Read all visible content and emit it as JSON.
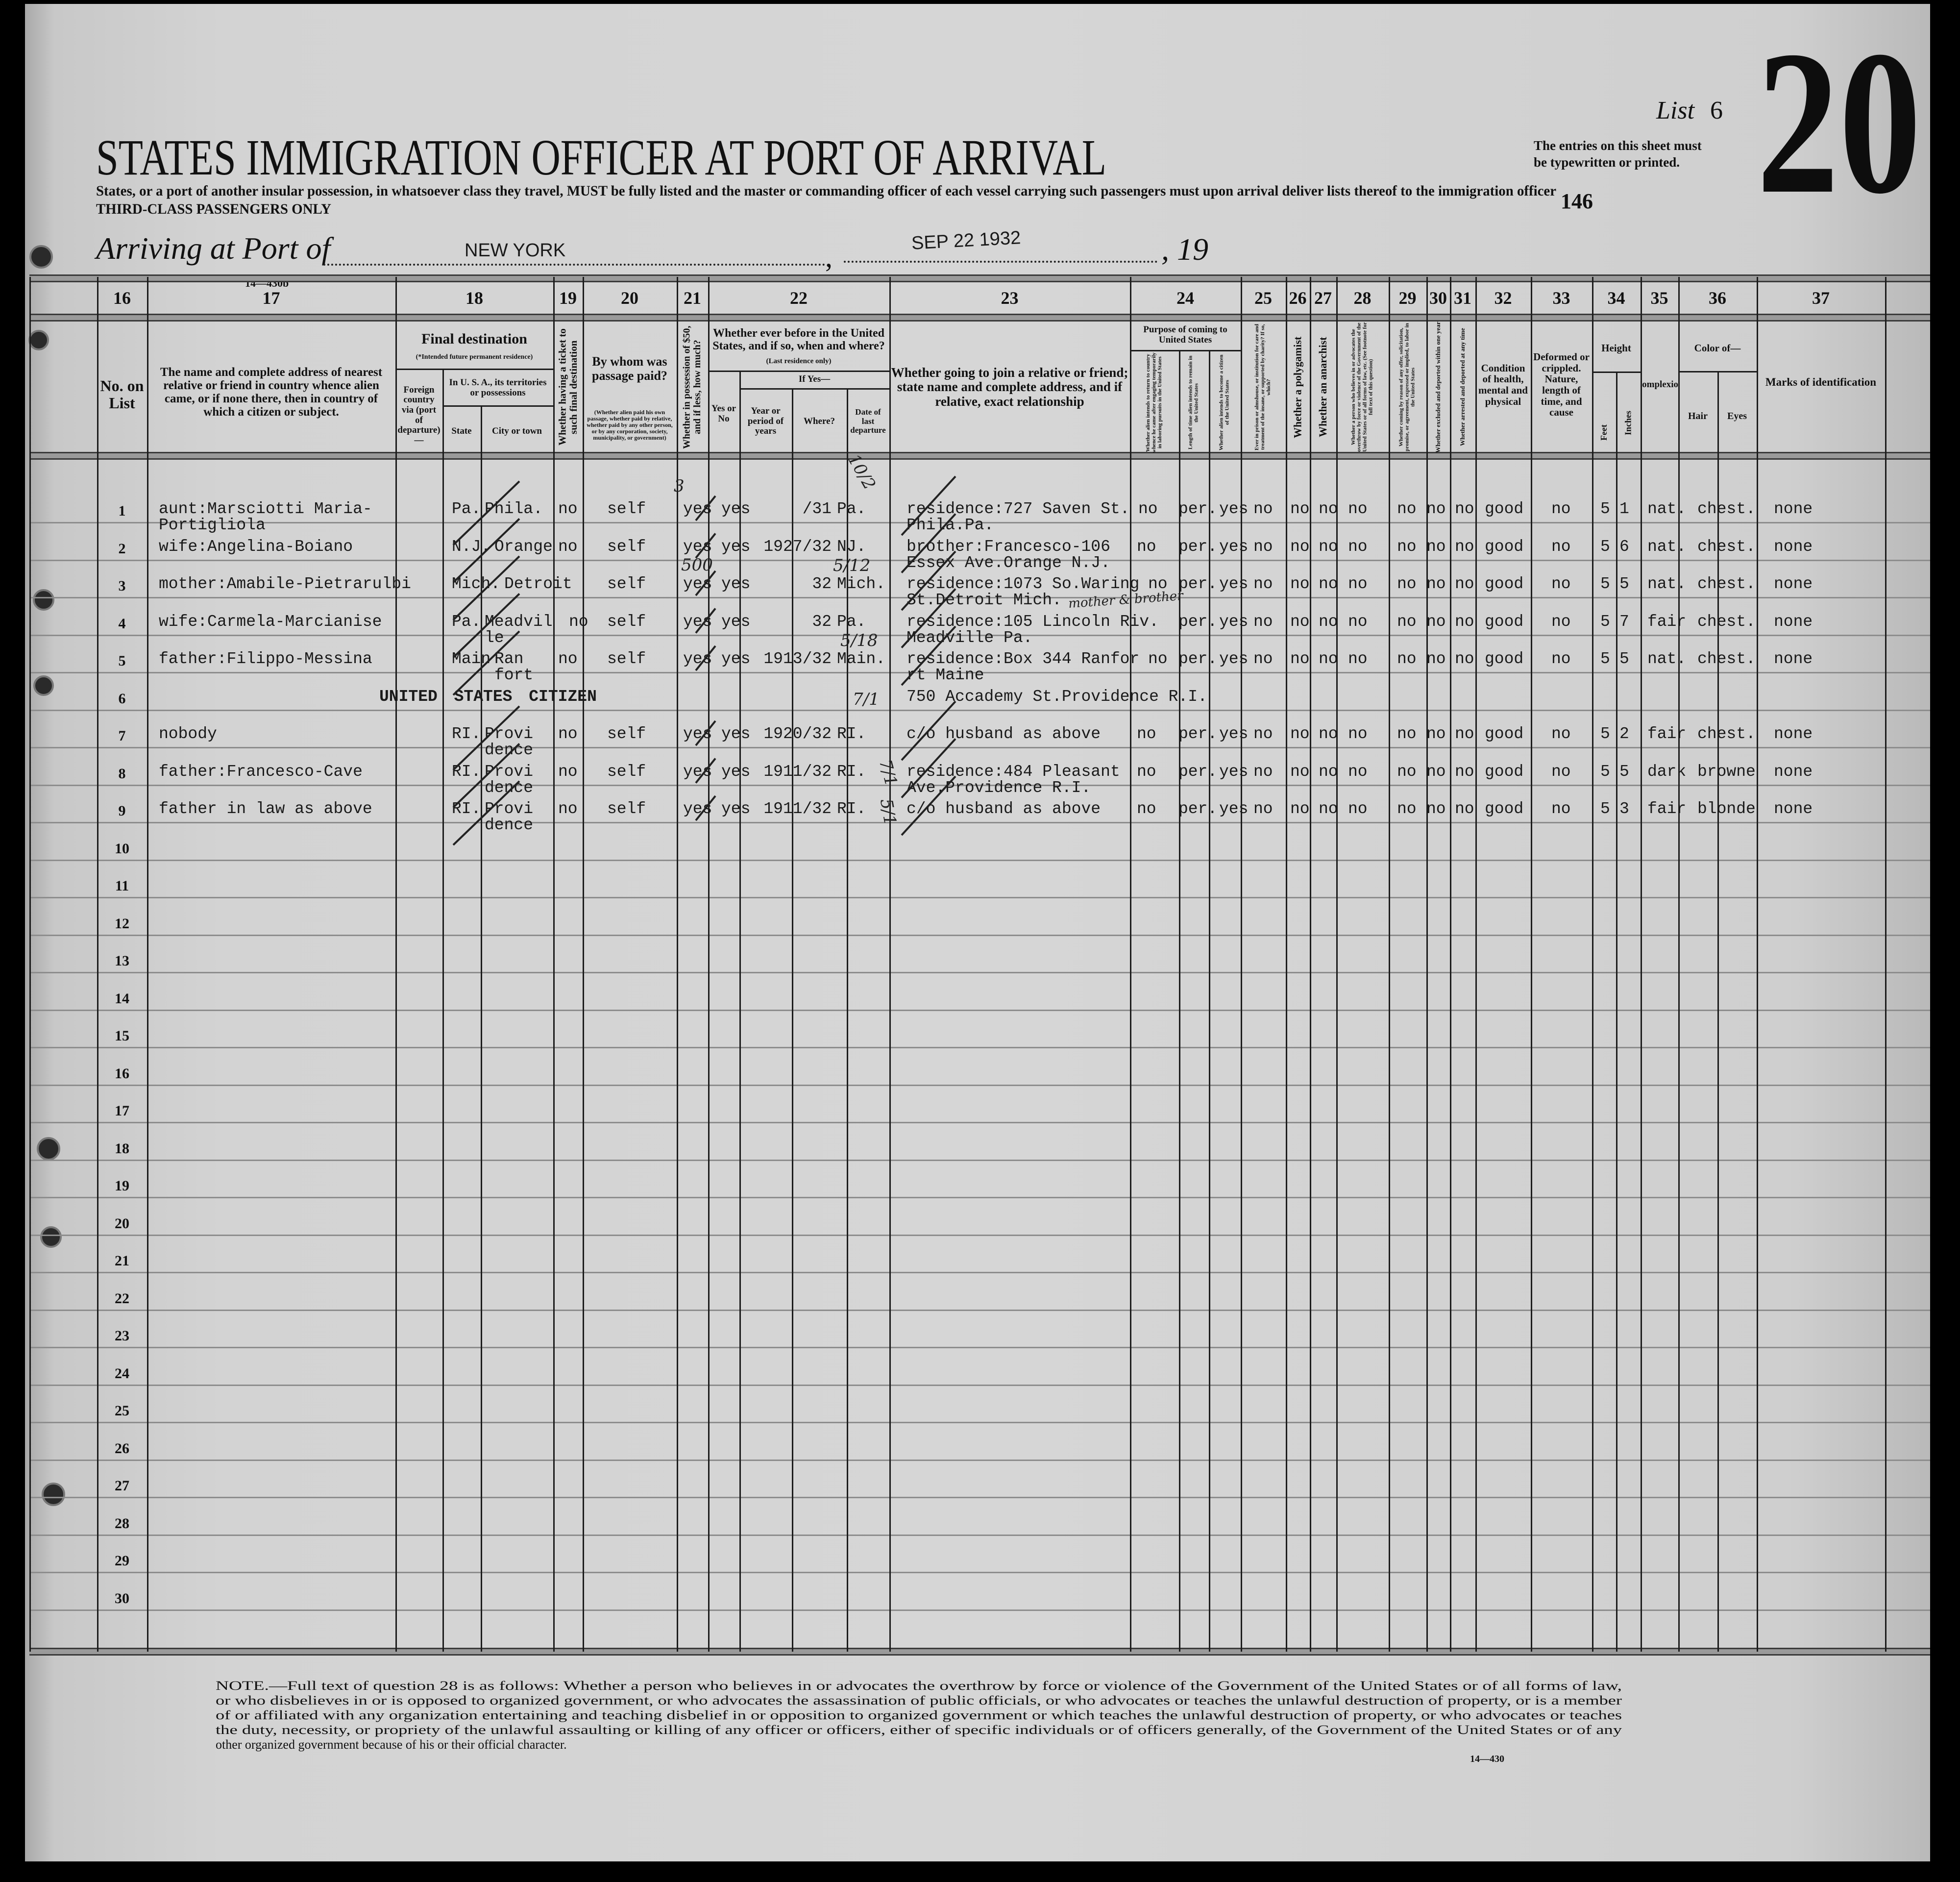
{
  "header": {
    "form_number": "14—430b",
    "title": "STATES IMMIGRATION OFFICER AT PORT OF ARRIVAL",
    "subtitle": "States, or a port of another insular possession, in whatsoever class they travel, MUST be fully listed and the master or commanding officer of each vessel carrying such passengers must upon arrival deliver lists thereof to the immigration officer",
    "passenger_class": "THIRD-CLASS PASSENGERS ONLY",
    "arriving_label": "Arriving at Port of",
    "port": "NEW YORK",
    "date": "SEP 22 1932",
    "year_prefix": ", 19",
    "list_label": "List",
    "list_number": "6",
    "sheet_number": "20",
    "stamp_number": "146",
    "entries_note_1": "The entries on this sheet must",
    "entries_note_2": "be typewritten or printed."
  },
  "columns": {
    "numbers": [
      "16",
      "17",
      "18",
      "19",
      "20",
      "21",
      "22",
      "23",
      "24",
      "25",
      "26",
      "27",
      "28",
      "29",
      "30",
      "31",
      "32",
      "33",
      "34",
      "35",
      "36",
      "37"
    ],
    "c16": "No. on List",
    "c17": "The name and complete address of nearest relative or friend in country whence alien came, or if none there, then in country of which a citizen or subject.",
    "c18_title": "Final destination",
    "c18_note": "(*Intended future permanent residence)",
    "c18_foreign": "Foreign country via (port of departure)—",
    "c18_usa": "In U. S. A., its territories or possessions",
    "c18_state": "State",
    "c18_city": "City or town",
    "c19": "Whether having a ticket to such final destination",
    "c20_title": "By whom was passage paid?",
    "c20_note": "(Whether alien paid his own passage, whether paid by relative, whether paid by any other person, or by any corporation, society, municipality, or government)",
    "c21": "Whether in possession of $50, and if less, how much?",
    "c22_title": "Whether ever before in the United States, and if so, when and where?",
    "c22_note": "(Last residence only)",
    "c22_yes_no": "Yes or No",
    "c22_if_yes": "If Yes—",
    "c22_years": "Year or period of years",
    "c22_where": "Where?",
    "c22_date": "Date of last departure",
    "c23": "Whether going to join a relative or friend; state name and complete address, and if relative, exact relationship",
    "c24_title": "Purpose of coming to United States",
    "c24_a": "Whether alien intends to return to country whence he came after engaging temporarily in laboring pursuits in the United States",
    "c24_b": "Length of time alien intends to remain in the United States",
    "c24_c": "Whether alien intends to become a citizen of the United States",
    "c25": "Ever in prison or almshouse, or institution for care and treatment of the insane, or supported by charity? If so, which?",
    "c26": "Whether a polygamist",
    "c27": "Whether an anarchist",
    "c28": "Whether a person who believes in or advocates the overthrow by force or violence of the Government of the United States or of all forms of law, etc. (See footnote for full text of this question)",
    "c29": "Whether coming by reason of any offer, solicitation, promise, or agreement, expressed or implied, to labor in the United States",
    "c30": "Whether excluded and deported within one year",
    "c31": "Whether arrested and deported at any time",
    "c32": "Condition of health, mental and physical",
    "c33": "Deformed or crippled. Nature, length of time, and cause",
    "c34_title": "Height",
    "c34_feet": "Feet",
    "c34_inches": "Inches",
    "c35": "Complexion",
    "c36_title": "Color of—",
    "c36_hair": "Hair",
    "c36_eyes": "Eyes",
    "c37": "Marks of identification"
  },
  "rows": [
    {
      "no": "1",
      "relative": "aunt:Marsciotti Maria-\nPortigliola",
      "state": "Pa.",
      "city": "Phila.",
      "ticket": "no",
      "paid_by": "self",
      "money": "yes",
      "before": "yes",
      "period": "/31",
      "where": "Pa.",
      "joining": "residence:727 Saven St.\nPhila.Pa.",
      "return": "no",
      "length": "per.",
      "citizen": "yes",
      "prison": "no",
      "polygamist": "no",
      "anarchist": "no",
      "q28": "no",
      "offer": "no",
      "excluded": "no",
      "arrested": "no",
      "health": "good",
      "deformed": "no",
      "feet": "5",
      "inches": "1",
      "complexion": "nat.",
      "hair_eyes": "chest.",
      "marks": "none"
    },
    {
      "no": "2",
      "relative": "wife:Angelina-Boiano",
      "state": "N.J.",
      "city": "Orange",
      "ticket": "no",
      "paid_by": "self",
      "money": "yes",
      "before": "yes",
      "period": "1927/32",
      "where": "NJ.",
      "joining": "brother:Francesco-106\nEssex Ave.Orange N.J.",
      "return": "no",
      "length": "per.",
      "citizen": "yes",
      "prison": "no",
      "polygamist": "no",
      "anarchist": "no",
      "q28": "no",
      "offer": "no",
      "excluded": "no",
      "arrested": "no",
      "health": "good",
      "deformed": "no",
      "feet": "5",
      "inches": "6",
      "complexion": "nat.",
      "hair_eyes": "chest.",
      "marks": "none"
    },
    {
      "no": "3",
      "relative": "mother:Amabile-Pietrarulbi",
      "state": "Mich.",
      "city": "Detroit",
      "ticket": "",
      "paid_by": "self",
      "money": "yes",
      "before": "yes",
      "period": "32",
      "where": "Mich.",
      "joining": "residence:1073 So.Waring\nSt.Detroit Mich.",
      "return": "no",
      "length": "per.",
      "citizen": "yes",
      "prison": "no",
      "polygamist": "no",
      "anarchist": "no",
      "q28": "no",
      "offer": "no",
      "excluded": "no",
      "arrested": "no",
      "health": "good",
      "deformed": "no",
      "feet": "5",
      "inches": "5",
      "complexion": "nat.",
      "hair_eyes": "chest.",
      "marks": "none"
    },
    {
      "no": "4",
      "relative": "wife:Carmela-Marcianise",
      "state": "Pa.",
      "city": "Meadvil\nle",
      "ticket": "no",
      "paid_by": "self",
      "money": "yes",
      "before": "yes",
      "period": "32",
      "where": "Pa.",
      "joining": "residence:105 Lincoln Riv.\nMeadville Pa.",
      "return": "",
      "length": "per.",
      "citizen": "yes",
      "prison": "no",
      "polygamist": "no",
      "anarchist": "no",
      "q28": "no",
      "offer": "no",
      "excluded": "no",
      "arrested": "no",
      "health": "good",
      "deformed": "no",
      "feet": "5",
      "inches": "7",
      "complexion": "fair",
      "hair_eyes": "chest.",
      "marks": "none"
    },
    {
      "no": "5",
      "relative": "father:Filippo-Messina",
      "state": "Main",
      "city": "Ran\nfort",
      "ticket": "no",
      "paid_by": "self",
      "money": "yes",
      "before": "yes",
      "period": "1913/32",
      "where": "Main.",
      "joining": "residence:Box 344 Ranfor\nrt Maine",
      "return": "no",
      "length": "per.",
      "citizen": "yes",
      "prison": "no",
      "polygamist": "no",
      "anarchist": "no",
      "q28": "no",
      "offer": "no",
      "excluded": "no",
      "arrested": "no",
      "health": "good",
      "deformed": "no",
      "feet": "5",
      "inches": "5",
      "complexion": "nat.",
      "hair_eyes": "chest.",
      "marks": "none"
    },
    {
      "no": "6",
      "status": "UNITED STATES CITIZEN",
      "joining": "750 Accademy St.Providence R.I."
    },
    {
      "no": "7",
      "relative": "nobody",
      "state": "RI.",
      "city": "Provi\ndence",
      "ticket": "no",
      "paid_by": "self",
      "money": "yes",
      "before": "yes",
      "period": "1920/32",
      "where": "RI.",
      "joining": "c/o husband as above",
      "return": "no",
      "length": "per.",
      "citizen": "yes",
      "prison": "no",
      "polygamist": "no",
      "anarchist": "no",
      "q28": "no",
      "offer": "no",
      "excluded": "no",
      "arrested": "no",
      "health": "good",
      "deformed": "no",
      "feet": "5",
      "inches": "2",
      "complexion": "fair",
      "hair_eyes": "chest.",
      "marks": "none"
    },
    {
      "no": "8",
      "relative": "father:Francesco-Cave",
      "state": "RI.",
      "city": "Provi\ndence",
      "ticket": "no",
      "paid_by": "self",
      "money": "yes",
      "before": "yes",
      "period": "1911/32",
      "where": "RI.",
      "joining": "residence:484 Pleasant\nAve.Providence R.I.",
      "return": "no",
      "length": "per.",
      "citizen": "yes",
      "prison": "no",
      "polygamist": "no",
      "anarchist": "no",
      "q28": "no",
      "offer": "no",
      "excluded": "no",
      "arrested": "no",
      "health": "good",
      "deformed": "no",
      "feet": "5",
      "inches": "5",
      "complexion": "dark",
      "hair_eyes": "browne",
      "marks": "none"
    },
    {
      "no": "9",
      "relative": "father in law as above",
      "state": "RI.",
      "city": "Provi\ndence",
      "ticket": "no",
      "paid_by": "self",
      "money": "yes",
      "before": "yes",
      "period": "1911/32",
      "where": "RI.",
      "joining": "c/o husband as above",
      "return": "no",
      "length": "per.",
      "citizen": "yes",
      "prison": "no",
      "polygamist": "no",
      "anarchist": "no",
      "q28": "no",
      "offer": "no",
      "excluded": "no",
      "arrested": "no",
      "health": "good",
      "deformed": "no",
      "feet": "5",
      "inches": "3",
      "complexion": "fair",
      "hair_eyes": "blonde",
      "marks": "none"
    },
    {
      "no": "10"
    },
    {
      "no": "11"
    },
    {
      "no": "12"
    },
    {
      "no": "13"
    },
    {
      "no": "14"
    },
    {
      "no": "15"
    },
    {
      "no": "16"
    },
    {
      "no": "17"
    },
    {
      "no": "18"
    },
    {
      "no": "19"
    },
    {
      "no": "20"
    },
    {
      "no": "21"
    },
    {
      "no": "22"
    },
    {
      "no": "23"
    },
    {
      "no": "24"
    },
    {
      "no": "25"
    },
    {
      "no": "26"
    },
    {
      "no": "27"
    },
    {
      "no": "28"
    },
    {
      "no": "29"
    },
    {
      "no": "30"
    }
  ],
  "handwritten": [
    "10/2",
    "500",
    "5/12",
    "mother & brother",
    "5/18",
    "7/1",
    "7/1",
    "5/1",
    "3"
  ],
  "footnote": {
    "lines": [
      "NOTE.—Full text of question 28 is as follows: Whether a person who believes in or advocates the overthrow by force or violence of the Government of the United States or of all forms of law,",
      "or who disbelieves in or is opposed to organized government, or who advocates the assassination of public officials, or who advocates or teaches the unlawful destruction of property, or is a member",
      "of or affiliated with any organization entertaining and teaching disbelief in or opposition to organized government or which teaches the unlawful destruction of property, or who advocates or teaches",
      "the duty, necessity, or propriety of the unlawful assaulting or killing of any officer or officers, either of specific individuals or of officers generally, of the Government of the United States or of any",
      "other organized government because of his or their official character."
    ],
    "form_number": "14—430"
  },
  "colors": {
    "paper": "#d3d3d3",
    "ink": "#1a1a1a",
    "rule": "#8d8d8d",
    "background": "#000000"
  }
}
